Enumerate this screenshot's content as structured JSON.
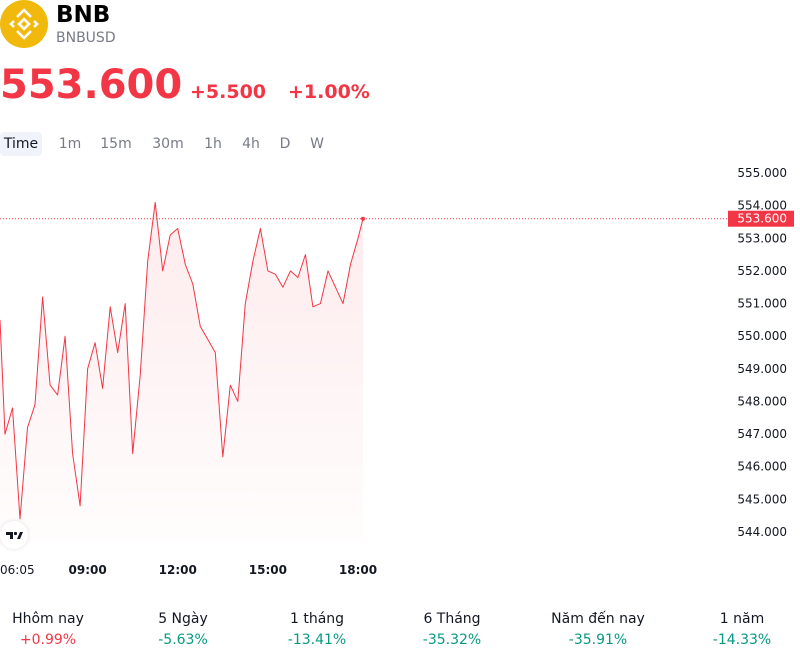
{
  "header": {
    "symbol": "BNB",
    "pair": "BNBUSD",
    "price": "553.600",
    "change": "+5.500",
    "change_pct": "+1.00%"
  },
  "tabs": [
    "Time",
    "1m",
    "15m",
    "30m",
    "1h",
    "4h",
    "D",
    "W"
  ],
  "colors": {
    "line": "#f23645",
    "positive": "#f23645",
    "negative": "#089981",
    "logo": "#f0b90b"
  },
  "performance": [
    {
      "label": "Hhôm nay",
      "value": "+0.99%",
      "trend": "pos"
    },
    {
      "label": "5 Ngày",
      "value": "-5.63%",
      "trend": "neg"
    },
    {
      "label": "1 tháng",
      "value": "-13.41%",
      "trend": "neg"
    },
    {
      "label": "6 Tháng",
      "value": "-35.32%",
      "trend": "neg"
    },
    {
      "label": "Năm đến nay",
      "value": "-35.91%",
      "trend": "neg"
    },
    {
      "label": "1 năm",
      "value": "-14.33%",
      "trend": "neg"
    }
  ],
  "chart_data": {
    "type": "area",
    "x": [
      "06:05",
      "06:15",
      "06:30",
      "06:45",
      "07:00",
      "07:15",
      "07:30",
      "07:45",
      "08:00",
      "08:15",
      "08:30",
      "08:45",
      "09:00",
      "09:15",
      "09:30",
      "09:45",
      "10:00",
      "10:15",
      "10:30",
      "10:45",
      "11:00",
      "11:15",
      "11:30",
      "11:45",
      "12:00",
      "12:15",
      "12:30",
      "12:45",
      "13:00",
      "13:15",
      "13:30",
      "13:45",
      "14:00",
      "14:15",
      "14:30",
      "14:45",
      "15:00",
      "15:15",
      "15:30",
      "15:45",
      "16:00",
      "16:15",
      "16:30",
      "16:45",
      "17:00",
      "17:15",
      "17:30",
      "17:45",
      "18:00",
      "18:10"
    ],
    "values": [
      550.5,
      547.0,
      547.8,
      544.4,
      547.2,
      547.9,
      551.2,
      548.5,
      548.2,
      550.0,
      546.4,
      544.8,
      549.0,
      549.8,
      548.4,
      550.9,
      549.5,
      551.0,
      546.4,
      548.8,
      552.3,
      554.1,
      552.0,
      553.1,
      553.3,
      552.2,
      551.6,
      550.3,
      549.9,
      549.5,
      546.3,
      548.5,
      548.0,
      551.0,
      552.3,
      553.3,
      552.0,
      551.9,
      551.5,
      552.0,
      551.8,
      552.5,
      550.9,
      551.0,
      552.0,
      551.5,
      551.0,
      552.2,
      553.0,
      553.6
    ],
    "x_ticks": [
      "06:05",
      "09:00",
      "12:00",
      "15:00",
      "18:00"
    ],
    "y_ticks": [
      "555.000",
      "554.000",
      "553.000",
      "552.000",
      "551.000",
      "550.000",
      "549.000",
      "548.000",
      "547.000",
      "546.000",
      "545.000",
      "544.000"
    ],
    "ylim": [
      543.6,
      555.4
    ],
    "last_value_label": "553.600",
    "grid": false,
    "fill": "#f23645"
  }
}
